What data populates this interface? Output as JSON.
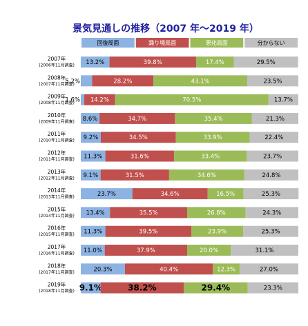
{
  "chart_data": {
    "type": "stacked-bar-horizontal",
    "title": "景気見通しの推移（2007 年～2019 年）",
    "categories": [
      "2007年",
      "2008年",
      "2009年",
      "2010年",
      "2011年",
      "2012年",
      "2013年",
      "2014年",
      "2015年",
      "2016年",
      "2017年",
      "2018年",
      "2019年"
    ],
    "survey_labels": [
      "(2006年11月調査)",
      "(2007年11月調査)",
      "(2008年11月調査)",
      "(2009年11月調査)",
      "(2010年11月調査)",
      "(2011年11月調査)",
      "(2012年11月調査)",
      "(2013年11月調査)",
      "(2014年11月調査)",
      "(2015年11月調査)",
      "(2016年11月調査)",
      "(2017年11月調査)",
      "(2018年11月調査)"
    ],
    "xlim": [
      0,
      100
    ],
    "series": [
      {
        "name": "回復局面",
        "color": "#8db3e2",
        "text_color": "#000000",
        "values": [
          13.2,
          5.2,
          1.6,
          8.6,
          9.2,
          11.3,
          9.1,
          23.7,
          13.4,
          11.3,
          11.0,
          20.3,
          9.1
        ],
        "value_labels": [
          "13.2%",
          "5.2%",
          "1.6%",
          "8.6%",
          "9.2%",
          "11.3%",
          "9.1%",
          "23.7%",
          "13.4%",
          "11.3%",
          "11.0%",
          "20.3%",
          "9.1%"
        ]
      },
      {
        "name": "踊り場局面",
        "color": "#c0504d",
        "text_color": "#ffffff",
        "values": [
          39.8,
          28.2,
          14.2,
          34.7,
          34.5,
          31.6,
          31.5,
          34.6,
          35.5,
          39.5,
          37.9,
          40.4,
          38.2
        ],
        "value_labels": [
          "39.8%",
          "28.2%",
          "14.2%",
          "34.7%",
          "34.5%",
          "31.6%",
          "31.5%",
          "34.6%",
          "35.5%",
          "39.5%",
          "37.9%",
          "40.4%",
          "38.2%"
        ]
      },
      {
        "name": "悪化局面",
        "color": "#9bbb59",
        "text_color": "#ffffff",
        "values": [
          17.4,
          43.1,
          70.5,
          35.4,
          33.9,
          33.4,
          34.6,
          16.5,
          26.8,
          23.9,
          20.0,
          12.3,
          29.4
        ],
        "value_labels": [
          "17.4%",
          "43.1%",
          "70.5%",
          "35.4%",
          "33.9%",
          "33.4%",
          "34.6%",
          "16.5%",
          "26.8%",
          "23.9%",
          "20.0%",
          "12.3%",
          "29.4%"
        ]
      },
      {
        "name": "分からない",
        "color": "#c0c0c0",
        "text_color": "#000000",
        "values": [
          29.5,
          23.5,
          13.7,
          21.3,
          22.4,
          23.7,
          24.8,
          25.3,
          24.3,
          25.3,
          31.1,
          27.0,
          23.3
        ],
        "value_labels": [
          "29.5%",
          "23.5%",
          "13.7%",
          "21.3%",
          "22.4%",
          "23.7%",
          "24.8%",
          "25.3%",
          "24.3%",
          "25.3%",
          "31.1%",
          "27.0%",
          "23.3%"
        ]
      }
    ]
  }
}
